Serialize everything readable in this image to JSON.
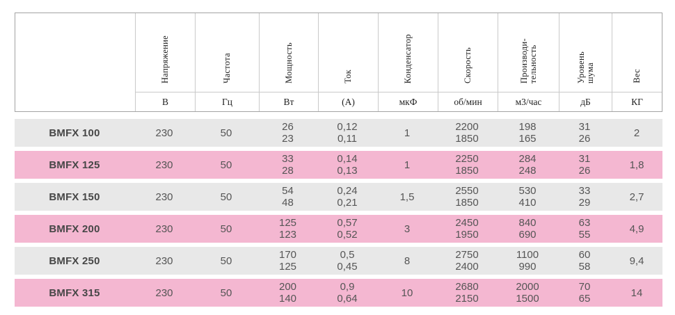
{
  "table": {
    "columns": [
      {
        "label": "",
        "unit": ""
      },
      {
        "label": "Напряжение",
        "unit": "В"
      },
      {
        "label": "Частота",
        "unit": "Гц"
      },
      {
        "label": "Мощность",
        "unit": "Вт"
      },
      {
        "label": "Ток",
        "unit": "(А)"
      },
      {
        "label": "Конденсатор",
        "unit": "мкФ"
      },
      {
        "label": "Скорость",
        "unit": "об/мин"
      },
      {
        "label": "Производи-\nтельность",
        "unit": "м3/час"
      },
      {
        "label": "Уровень\nшума",
        "unit": "дБ"
      },
      {
        "label": "Вес",
        "unit": "КГ"
      }
    ],
    "rows": [
      {
        "model": "BMFX 100",
        "highlight": false,
        "values": [
          "230",
          "50",
          "26\n23",
          "0,12\n0,11",
          "1",
          "2200\n1850",
          "198\n165",
          "31\n26",
          "2"
        ]
      },
      {
        "model": "BMFX 125",
        "highlight": true,
        "values": [
          "230",
          "50",
          "33\n28",
          "0,14\n0,13",
          "1",
          "2250\n1850",
          "284\n248",
          "31\n26",
          "1,8"
        ]
      },
      {
        "model": "BMFX 150",
        "highlight": false,
        "values": [
          "230",
          "50",
          "54\n48",
          "0,24\n0,21",
          "1,5",
          "2550\n1850",
          "530\n410",
          "33\n29",
          "2,7"
        ]
      },
      {
        "model": "BMFX 200",
        "highlight": true,
        "values": [
          "230",
          "50",
          "125\n123",
          "0,57\n0,52",
          "3",
          "2450\n1950",
          "840\n690",
          "63\n55",
          "4,9"
        ]
      },
      {
        "model": "BMFX 250",
        "highlight": false,
        "values": [
          "230",
          "50",
          "170\n125",
          "0,5\n0,45",
          "8",
          "2750\n2400",
          "1100\n990",
          "60\n58",
          "9,4"
        ]
      },
      {
        "model": "BMFX 315",
        "highlight": true,
        "values": [
          "230",
          "50",
          "200\n140",
          "0,9\n0,64",
          "10",
          "2680\n2150",
          "2000\n1500",
          "70\n65",
          "14"
        ]
      }
    ]
  },
  "colors": {
    "row_gray": "#e8e8e8",
    "row_pink": "#f4b7d1",
    "text": "#555555",
    "header_text": "#1f1f1f",
    "border_outer": "#a3a3a3",
    "border_inner": "#c9c9c9"
  }
}
